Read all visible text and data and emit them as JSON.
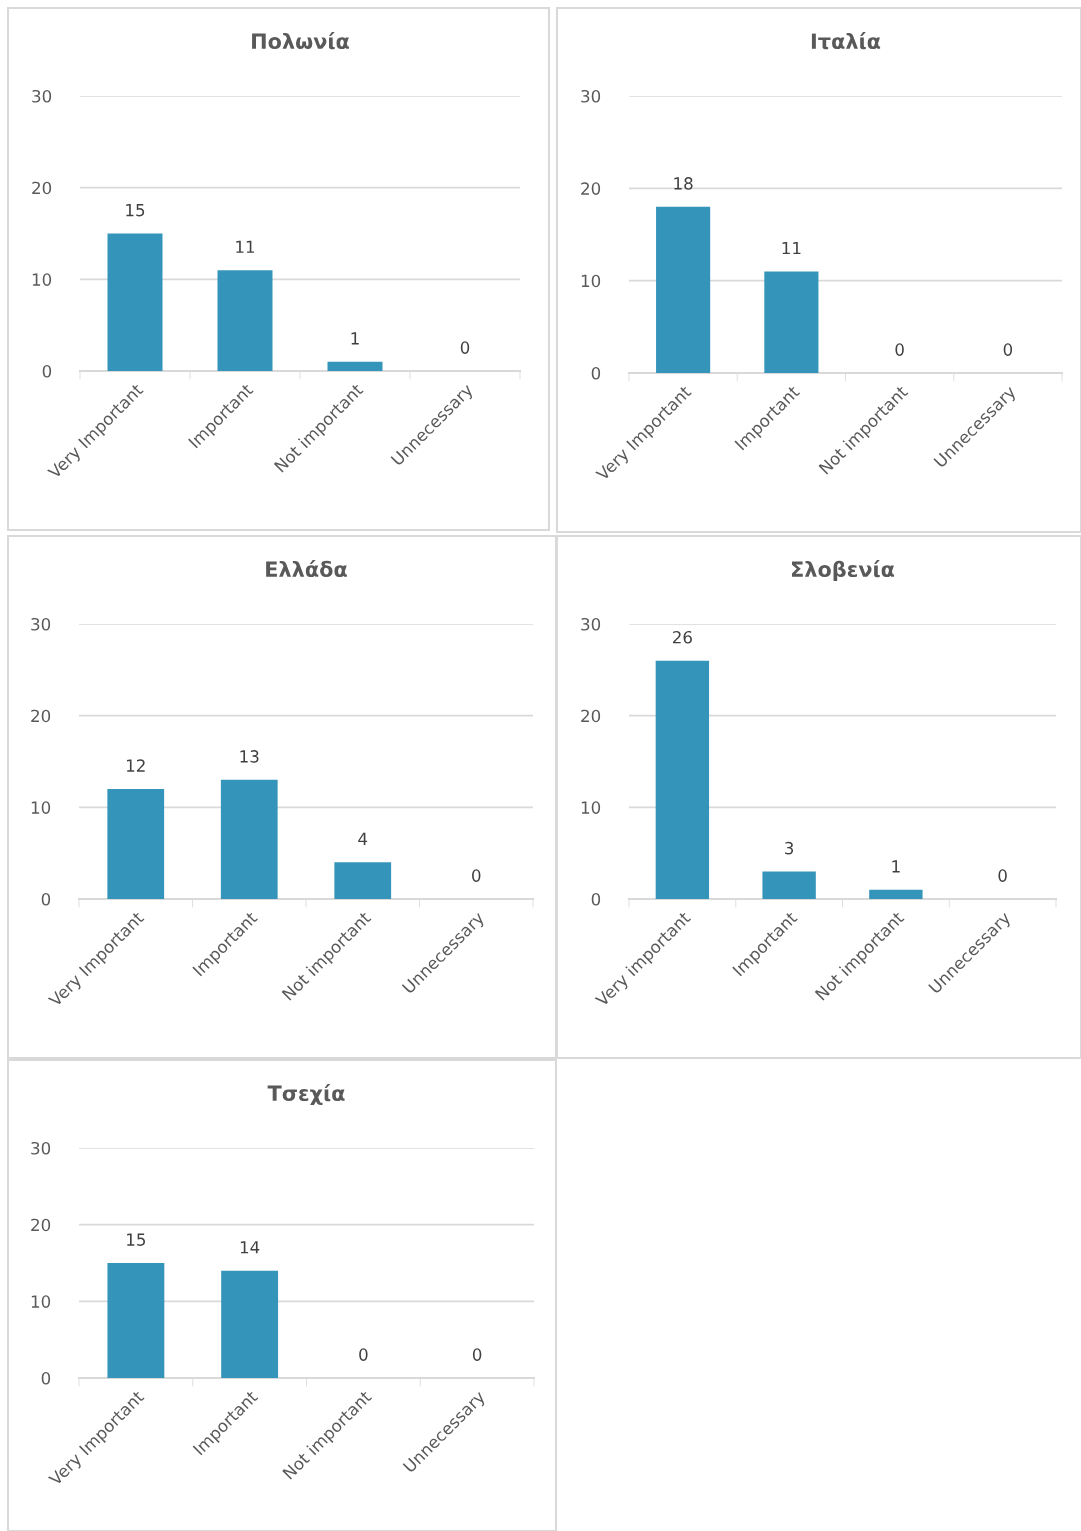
{
  "chart_data": [
    {
      "type": "bar",
      "title": "Πολωνία",
      "categories": [
        "Very Important",
        "Important",
        "Not important",
        "Unnecessary"
      ],
      "values": [
        15,
        11,
        1,
        0
      ],
      "color": "#3494ba",
      "ylim": [
        0,
        30
      ],
      "yticks": [
        0,
        10,
        20,
        30
      ],
      "grid": "y",
      "data_labels": true
    },
    {
      "type": "bar",
      "title": "Ιταλία",
      "categories": [
        "Very Important",
        "Important",
        "Not important",
        "Unnecessary"
      ],
      "values": [
        18,
        11,
        0,
        0
      ],
      "color": "#3494ba",
      "ylim": [
        0,
        30
      ],
      "yticks": [
        0,
        10,
        20,
        30
      ],
      "grid": "y",
      "data_labels": true
    },
    {
      "type": "bar",
      "title": "Ελλάδα",
      "categories": [
        "Very Important",
        "Important",
        "Not important",
        "Unnecessary"
      ],
      "values": [
        12,
        13,
        4,
        0
      ],
      "color": "#3494ba",
      "ylim": [
        0,
        30
      ],
      "yticks": [
        0,
        10,
        20,
        30
      ],
      "grid": "y",
      "data_labels": true
    },
    {
      "type": "bar",
      "title": "Σλοβενία",
      "categories": [
        "Very important",
        "Important",
        "Not important",
        "Unnecessary"
      ],
      "values": [
        26,
        3,
        1,
        0
      ],
      "color": "#3494ba",
      "ylim": [
        0,
        30
      ],
      "yticks": [
        0,
        10,
        20,
        30
      ],
      "grid": "y",
      "data_labels": true
    },
    {
      "type": "bar",
      "title": "Τσεχία",
      "categories": [
        "Very Important",
        "Important",
        "Not important",
        "Unnecessary"
      ],
      "values": [
        15,
        14,
        0,
        0
      ],
      "color": "#3494ba",
      "ylim": [
        0,
        30
      ],
      "yticks": [
        0,
        10,
        20,
        30
      ],
      "grid": "y",
      "data_labels": true
    }
  ]
}
